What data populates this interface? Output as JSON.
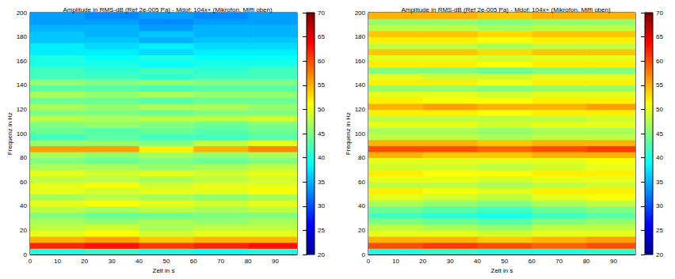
{
  "chart_data": [
    {
      "type": "heatmap",
      "title": "Amplitude in RMS-dB (Ref 2e-005 Pa) - Mdof: 104x+ (Mikrofon. Miffi oben)",
      "x_label": "Zeit in s",
      "y_label": "Frequenz in Hz",
      "xlim": [
        0,
        98
      ],
      "xticks": [
        0,
        10,
        20,
        30,
        40,
        50,
        60,
        70,
        80,
        90
      ],
      "ylim": [
        0,
        200
      ],
      "yticks": [
        0,
        20,
        40,
        60,
        80,
        100,
        120,
        140,
        160,
        180,
        200
      ],
      "x_edges": [
        0,
        20,
        40,
        60,
        80,
        98
      ],
      "y_edges": [
        0,
        5,
        10,
        15,
        20,
        25,
        30,
        35,
        40,
        45,
        50,
        55,
        60,
        65,
        70,
        75,
        80,
        85,
        90,
        95,
        100,
        105,
        110,
        115,
        120,
        125,
        130,
        135,
        140,
        145,
        150,
        155,
        160,
        165,
        170,
        175,
        180,
        185,
        190,
        195,
        200
      ],
      "cells": [
        [
          40,
          41,
          40,
          39,
          40
        ],
        [
          62,
          63,
          61,
          62,
          63
        ],
        [
          55,
          56,
          54,
          55,
          55
        ],
        [
          50,
          51,
          49,
          50,
          50
        ],
        [
          48,
          49,
          47,
          48,
          48
        ],
        [
          47,
          46,
          47,
          46,
          47
        ],
        [
          45,
          44,
          44,
          45,
          45
        ],
        [
          48,
          47,
          48,
          47,
          48
        ],
        [
          50,
          51,
          50,
          49,
          50
        ],
        [
          47,
          48,
          47,
          46,
          47
        ],
        [
          50,
          49,
          50,
          50,
          51
        ],
        [
          50,
          51,
          49,
          50,
          50
        ],
        [
          48,
          48,
          47,
          48,
          49
        ],
        [
          50,
          49,
          50,
          49,
          50
        ],
        [
          47,
          47,
          46,
          47,
          48
        ],
        [
          45,
          44,
          45,
          44,
          45
        ],
        [
          47,
          46,
          47,
          46,
          47
        ],
        [
          56,
          56,
          52,
          55,
          57
        ],
        [
          46,
          46,
          45,
          48,
          50
        ],
        [
          42,
          43,
          42,
          42,
          43
        ],
        [
          44,
          43,
          44,
          43,
          44
        ],
        [
          45,
          46,
          45,
          44,
          45
        ],
        [
          48,
          47,
          48,
          48,
          49
        ],
        [
          45,
          45,
          44,
          45,
          45
        ],
        [
          47,
          46,
          47,
          47,
          46
        ],
        [
          44,
          44,
          43,
          44,
          44
        ],
        [
          47,
          46,
          47,
          46,
          46
        ],
        [
          43,
          43,
          42,
          43,
          43
        ],
        [
          46,
          45,
          46,
          45,
          45
        ],
        [
          42,
          42,
          41,
          42,
          42
        ],
        [
          42,
          41,
          42,
          41,
          42
        ],
        [
          40,
          40,
          39,
          40,
          40
        ],
        [
          40,
          39,
          40,
          39,
          39
        ],
        [
          38,
          38,
          37,
          38,
          38
        ],
        [
          38,
          37,
          38,
          37,
          37
        ],
        [
          36,
          36,
          35,
          36,
          36
        ],
        [
          36,
          35,
          36,
          35,
          35
        ],
        [
          35,
          35,
          34,
          35,
          35
        ],
        [
          34,
          34,
          33,
          34,
          34
        ],
        [
          34,
          33,
          34,
          33,
          34
        ]
      ],
      "colorbar_range": [
        20,
        70
      ],
      "colorbar_ticks": [
        20,
        25,
        30,
        35,
        40,
        45,
        50,
        55,
        60,
        65,
        70
      ]
    },
    {
      "type": "heatmap",
      "title": "Amplitude in RMS-dB (Ref 2e-005 Pa) - Mdof: 104x+ (Mikrofon. Miffi oben)",
      "x_label": "Zeit in s",
      "y_label": "Frequenz in Hz",
      "xlim": [
        0,
        98
      ],
      "xticks": [
        0,
        10,
        20,
        30,
        40,
        50,
        60,
        70,
        80,
        90
      ],
      "ylim": [
        0,
        200
      ],
      "yticks": [
        0,
        20,
        40,
        60,
        80,
        100,
        120,
        140,
        160,
        180,
        200
      ],
      "x_edges": [
        0,
        20,
        40,
        60,
        80,
        98
      ],
      "y_edges": [
        0,
        5,
        10,
        15,
        20,
        25,
        30,
        35,
        40,
        45,
        50,
        55,
        60,
        65,
        70,
        75,
        80,
        85,
        90,
        95,
        100,
        105,
        110,
        115,
        120,
        125,
        130,
        135,
        140,
        145,
        150,
        155,
        160,
        165,
        170,
        175,
        180,
        185,
        190,
        195,
        200
      ],
      "cells": [
        [
          40,
          41,
          40,
          40,
          41
        ],
        [
          60,
          61,
          60,
          59,
          60
        ],
        [
          55,
          55,
          54,
          55,
          56
        ],
        [
          50,
          50,
          49,
          50,
          50
        ],
        [
          48,
          47,
          46,
          48,
          48
        ],
        [
          45,
          44,
          43,
          45,
          46
        ],
        [
          42,
          41,
          40,
          42,
          43
        ],
        [
          44,
          43,
          42,
          44,
          45
        ],
        [
          47,
          46,
          45,
          47,
          48
        ],
        [
          50,
          49,
          48,
          50,
          51
        ],
        [
          52,
          51,
          50,
          52,
          52
        ],
        [
          48,
          48,
          47,
          48,
          49
        ],
        [
          50,
          50,
          49,
          50,
          50
        ],
        [
          52,
          51,
          51,
          52,
          52
        ],
        [
          49,
          49,
          48,
          49,
          50
        ],
        [
          50,
          50,
          50,
          50,
          51
        ],
        [
          55,
          54,
          54,
          55,
          55
        ],
        [
          60,
          60,
          59,
          60,
          61
        ],
        [
          55,
          55,
          54,
          55,
          55
        ],
        [
          48,
          48,
          47,
          48,
          48
        ],
        [
          47,
          47,
          46,
          47,
          47
        ],
        [
          50,
          50,
          49,
          50,
          50
        ],
        [
          48,
          48,
          48,
          48,
          49
        ],
        [
          52,
          52,
          51,
          52,
          52
        ],
        [
          55,
          56,
          55,
          55,
          56
        ],
        [
          52,
          51,
          51,
          52,
          52
        ],
        [
          50,
          50,
          49,
          50,
          50
        ],
        [
          46,
          46,
          45,
          46,
          46
        ],
        [
          52,
          52,
          51,
          52,
          52
        ],
        [
          50,
          49,
          49,
          50,
          50
        ],
        [
          45,
          45,
          44,
          45,
          45
        ],
        [
          52,
          52,
          51,
          52,
          52
        ],
        [
          50,
          50,
          49,
          50,
          50
        ],
        [
          54,
          54,
          53,
          54,
          54
        ],
        [
          48,
          48,
          47,
          48,
          48
        ],
        [
          52,
          52,
          51,
          52,
          52
        ],
        [
          54,
          54,
          53,
          54,
          54
        ],
        [
          48,
          48,
          47,
          48,
          48
        ],
        [
          46,
          46,
          45,
          46,
          46
        ],
        [
          55,
          55,
          54,
          55,
          55
        ]
      ],
      "colorbar_range": [
        20,
        70
      ],
      "colorbar_ticks": [
        20,
        25,
        30,
        35,
        40,
        45,
        50,
        55,
        60,
        65,
        70
      ]
    }
  ]
}
